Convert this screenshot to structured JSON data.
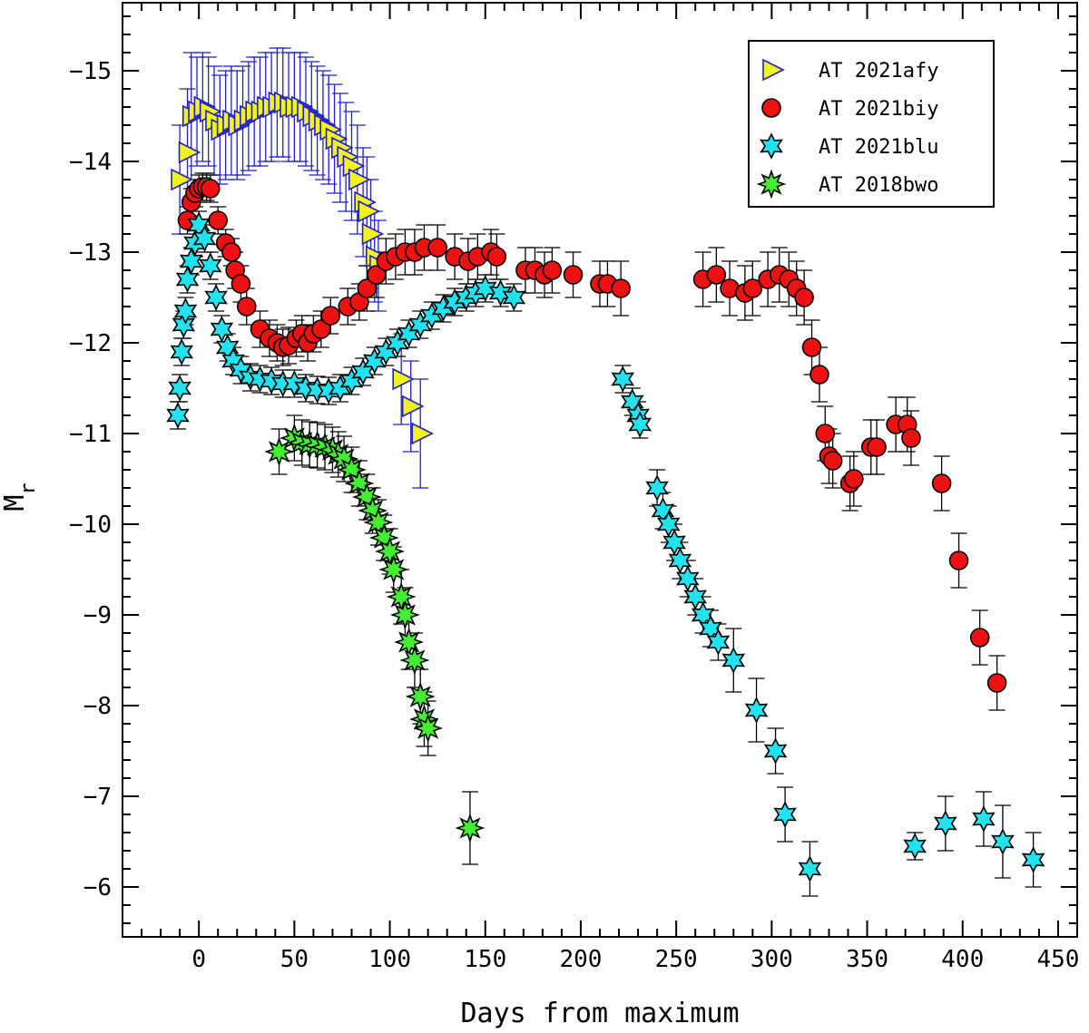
{
  "chart_data": {
    "type": "scatter",
    "title": "",
    "xlabel": "Days from maximum",
    "ylabel": "M",
    "ylabel_subscript": "r",
    "xlim": [
      -40,
      460
    ],
    "ylim": [
      -5.45,
      -15.75
    ],
    "y_inverted": true,
    "xticks": [
      0,
      50,
      100,
      150,
      200,
      250,
      300,
      350,
      400,
      450
    ],
    "yticks": [
      -15,
      -14,
      -13,
      -12,
      -11,
      -10,
      -9,
      -8,
      -7,
      -6
    ],
    "legend_position": "top-right",
    "series": [
      {
        "name": "AT 2021afy",
        "marker": "triangle-right",
        "fill": "#f2f21c",
        "edge": "#1f1fd0",
        "errcolor": "#1f1fd0",
        "points": [
          [
            -10,
            -13.8,
            0.6
          ],
          [
            -6,
            -14.1,
            0.7
          ],
          [
            -4,
            -14.5,
            0.7
          ],
          [
            -1,
            -14.55,
            0.6
          ],
          [
            2,
            -14.6,
            0.6
          ],
          [
            5,
            -14.55,
            0.6
          ],
          [
            8,
            -14.45,
            0.6
          ],
          [
            11,
            -14.35,
            0.6
          ],
          [
            14,
            -14.4,
            0.6
          ],
          [
            17,
            -14.45,
            0.6
          ],
          [
            20,
            -14.4,
            0.6
          ],
          [
            23,
            -14.45,
            0.6
          ],
          [
            26,
            -14.5,
            0.6
          ],
          [
            29,
            -14.55,
            0.6
          ],
          [
            32,
            -14.55,
            0.6
          ],
          [
            35,
            -14.6,
            0.6
          ],
          [
            38,
            -14.6,
            0.6
          ],
          [
            41,
            -14.65,
            0.6
          ],
          [
            44,
            -14.65,
            0.6
          ],
          [
            47,
            -14.6,
            0.6
          ],
          [
            50,
            -14.6,
            0.6
          ],
          [
            53,
            -14.6,
            0.6
          ],
          [
            56,
            -14.55,
            0.6
          ],
          [
            59,
            -14.5,
            0.6
          ],
          [
            62,
            -14.45,
            0.6
          ],
          [
            65,
            -14.4,
            0.6
          ],
          [
            68,
            -14.35,
            0.6
          ],
          [
            71,
            -14.25,
            0.6
          ],
          [
            74,
            -14.15,
            0.6
          ],
          [
            77,
            -14.05,
            0.6
          ],
          [
            80,
            -13.95,
            0.6
          ],
          [
            83,
            -13.8,
            0.6
          ],
          [
            86,
            -13.55,
            0.6
          ],
          [
            88,
            -13.45,
            0.6
          ],
          [
            90,
            -13.2,
            0.6
          ],
          [
            92,
            -12.95,
            0.5
          ],
          [
            94,
            -12.85,
            0.5
          ],
          [
            106,
            -11.6,
            0.5
          ],
          [
            111,
            -11.3,
            0.5
          ],
          [
            116,
            -11.0,
            0.6
          ]
        ]
      },
      {
        "name": "AT 2021biy",
        "marker": "circle",
        "fill": "#ee1111",
        "edge": "#000000",
        "errcolor": "#000000",
        "points": [
          [
            -6,
            -13.35,
            0.15
          ],
          [
            -4,
            -13.55,
            0.15
          ],
          [
            -2,
            -13.65,
            0.15
          ],
          [
            0,
            -13.7,
            0.15
          ],
          [
            2,
            -13.72,
            0.15
          ],
          [
            4,
            -13.72,
            0.15
          ],
          [
            6,
            -13.7,
            0.15
          ],
          [
            10,
            -13.35,
            0.15
          ],
          [
            14,
            -13.1,
            0.15
          ],
          [
            17,
            -13.0,
            0.15
          ],
          [
            19,
            -12.8,
            0.2
          ],
          [
            22,
            -12.65,
            0.2
          ],
          [
            25,
            -12.4,
            0.2
          ],
          [
            32,
            -12.15,
            0.2
          ],
          [
            37,
            -12.05,
            0.2
          ],
          [
            41,
            -12.0,
            0.2
          ],
          [
            44,
            -11.95,
            0.2
          ],
          [
            47,
            -11.97,
            0.2
          ],
          [
            51,
            -12.05,
            0.2
          ],
          [
            54,
            -12.1,
            0.2
          ],
          [
            57,
            -12.0,
            0.2
          ],
          [
            60,
            -12.1,
            0.2
          ],
          [
            64,
            -12.15,
            0.2
          ],
          [
            69,
            -12.3,
            0.2
          ],
          [
            78,
            -12.4,
            0.2
          ],
          [
            84,
            -12.45,
            0.2
          ],
          [
            88,
            -12.6,
            0.25
          ],
          [
            93,
            -12.75,
            0.25
          ],
          [
            98,
            -12.9,
            0.25
          ],
          [
            103,
            -12.95,
            0.25
          ],
          [
            108,
            -13.0,
            0.25
          ],
          [
            113,
            -13.0,
            0.25
          ],
          [
            118,
            -13.05,
            0.25
          ],
          [
            125,
            -13.05,
            0.25
          ],
          [
            134,
            -12.95,
            0.25
          ],
          [
            141,
            -12.9,
            0.25
          ],
          [
            146,
            -12.95,
            0.25
          ],
          [
            153,
            -13.0,
            0.25
          ],
          [
            156,
            -12.95,
            0.25
          ],
          [
            171,
            -12.8,
            0.25
          ],
          [
            176,
            -12.8,
            0.25
          ],
          [
            181,
            -12.75,
            0.25
          ],
          [
            185,
            -12.8,
            0.25
          ],
          [
            196,
            -12.75,
            0.25
          ],
          [
            210,
            -12.65,
            0.25
          ],
          [
            214,
            -12.65,
            0.25
          ],
          [
            221,
            -12.6,
            0.3
          ],
          [
            264,
            -12.7,
            0.3
          ],
          [
            271,
            -12.75,
            0.3
          ],
          [
            278,
            -12.6,
            0.3
          ],
          [
            286,
            -12.55,
            0.3
          ],
          [
            290,
            -12.6,
            0.3
          ],
          [
            298,
            -12.7,
            0.3
          ],
          [
            304,
            -12.75,
            0.3
          ],
          [
            309,
            -12.7,
            0.3
          ],
          [
            313,
            -12.6,
            0.3
          ],
          [
            317,
            -12.5,
            0.3
          ],
          [
            321,
            -11.95,
            0.3
          ],
          [
            325,
            -11.65,
            0.3
          ],
          [
            328,
            -11.0,
            0.3
          ],
          [
            330,
            -10.75,
            0.3
          ],
          [
            332,
            -10.7,
            0.3
          ],
          [
            341,
            -10.45,
            0.3
          ],
          [
            343,
            -10.5,
            0.3
          ],
          [
            352,
            -10.85,
            0.3
          ],
          [
            355,
            -10.85,
            0.3
          ],
          [
            365,
            -11.1,
            0.3
          ],
          [
            371,
            -11.1,
            0.3
          ],
          [
            373,
            -10.95,
            0.3
          ],
          [
            389,
            -10.45,
            0.3
          ],
          [
            398,
            -9.6,
            0.3
          ],
          [
            409,
            -8.75,
            0.3
          ],
          [
            418,
            -8.25,
            0.3
          ]
        ]
      },
      {
        "name": "AT 2021blu",
        "marker": "star6",
        "fill": "#22e2ee",
        "edge": "#000000",
        "errcolor": "#000000",
        "points": [
          [
            -11,
            -11.2,
            0.15
          ],
          [
            -10,
            -11.5,
            0.15
          ],
          [
            -9,
            -11.9,
            0.15
          ],
          [
            -8,
            -12.2,
            0.15
          ],
          [
            -7,
            -12.35,
            0.15
          ],
          [
            -6,
            -12.7,
            0.15
          ],
          [
            -4,
            -12.9,
            0.15
          ],
          [
            -2,
            -13.1,
            0.15
          ],
          [
            0,
            -13.3,
            0.15
          ],
          [
            3,
            -13.15,
            0.15
          ],
          [
            6,
            -12.85,
            0.15
          ],
          [
            9,
            -12.5,
            0.15
          ],
          [
            12,
            -12.15,
            0.15
          ],
          [
            15,
            -11.95,
            0.15
          ],
          [
            18,
            -11.8,
            0.15
          ],
          [
            22,
            -11.7,
            0.15
          ],
          [
            27,
            -11.62,
            0.15
          ],
          [
            32,
            -11.6,
            0.15
          ],
          [
            38,
            -11.58,
            0.15
          ],
          [
            44,
            -11.55,
            0.15
          ],
          [
            50,
            -11.55,
            0.15
          ],
          [
            56,
            -11.5,
            0.15
          ],
          [
            62,
            -11.48,
            0.15
          ],
          [
            68,
            -11.47,
            0.15
          ],
          [
            74,
            -11.5,
            0.15
          ],
          [
            80,
            -11.58,
            0.15
          ],
          [
            86,
            -11.68,
            0.15
          ],
          [
            92,
            -11.8,
            0.15
          ],
          [
            98,
            -11.9,
            0.15
          ],
          [
            104,
            -12.0,
            0.15
          ],
          [
            110,
            -12.1,
            0.15
          ],
          [
            116,
            -12.2,
            0.15
          ],
          [
            122,
            -12.3,
            0.15
          ],
          [
            128,
            -12.38,
            0.15
          ],
          [
            134,
            -12.45,
            0.15
          ],
          [
            140,
            -12.5,
            0.15
          ],
          [
            145,
            -12.55,
            0.15
          ],
          [
            150,
            -12.6,
            0.15
          ],
          [
            158,
            -12.55,
            0.15
          ],
          [
            165,
            -12.5,
            0.15
          ],
          [
            222,
            -11.6,
            0.15
          ],
          [
            227,
            -11.35,
            0.15
          ],
          [
            230,
            -11.2,
            0.15
          ],
          [
            231,
            -11.1,
            0.15
          ],
          [
            240,
            -10.4,
            0.2
          ],
          [
            243,
            -10.15,
            0.2
          ],
          [
            246,
            -10.0,
            0.2
          ],
          [
            249,
            -9.8,
            0.2
          ],
          [
            252,
            -9.6,
            0.2
          ],
          [
            256,
            -9.4,
            0.2
          ],
          [
            260,
            -9.2,
            0.2
          ],
          [
            264,
            -9.0,
            0.2
          ],
          [
            268,
            -8.85,
            0.2
          ],
          [
            272,
            -8.7,
            0.2
          ],
          [
            280,
            -8.5,
            0.35
          ],
          [
            292,
            -7.95,
            0.35
          ],
          [
            302,
            -7.5,
            0.25
          ],
          [
            307,
            -6.8,
            0.3
          ],
          [
            320,
            -6.2,
            0.3
          ],
          [
            375,
            -6.45,
            0.15
          ],
          [
            391,
            -6.7,
            0.3
          ],
          [
            411,
            -6.75,
            0.3
          ],
          [
            421,
            -6.5,
            0.4
          ],
          [
            437,
            -6.3,
            0.3
          ]
        ]
      },
      {
        "name": "AT 2018bwo",
        "marker": "star8",
        "fill": "#44ee33",
        "edge": "#000000",
        "errcolor": "#000000",
        "points": [
          [
            42,
            -10.8,
            0.25
          ],
          [
            50,
            -10.95,
            0.25
          ],
          [
            54,
            -10.9,
            0.25
          ],
          [
            58,
            -10.88,
            0.25
          ],
          [
            62,
            -10.87,
            0.25
          ],
          [
            66,
            -10.85,
            0.25
          ],
          [
            70,
            -10.82,
            0.25
          ],
          [
            73,
            -10.77,
            0.25
          ],
          [
            76,
            -10.72,
            0.25
          ],
          [
            80,
            -10.6,
            0.25
          ],
          [
            84,
            -10.45,
            0.25
          ],
          [
            88,
            -10.3,
            0.25
          ],
          [
            91,
            -10.15,
            0.25
          ],
          [
            94,
            -10.02,
            0.25
          ],
          [
            97,
            -9.85,
            0.25
          ],
          [
            100,
            -9.7,
            0.25
          ],
          [
            102,
            -9.5,
            0.25
          ],
          [
            106,
            -9.2,
            0.3
          ],
          [
            108,
            -9.0,
            0.3
          ],
          [
            110,
            -8.7,
            0.3
          ],
          [
            113,
            -8.5,
            0.3
          ],
          [
            116,
            -8.1,
            0.3
          ],
          [
            118,
            -7.85,
            0.3
          ],
          [
            120,
            -7.75,
            0.3
          ],
          [
            142,
            -6.65,
            0.4
          ]
        ]
      }
    ]
  }
}
